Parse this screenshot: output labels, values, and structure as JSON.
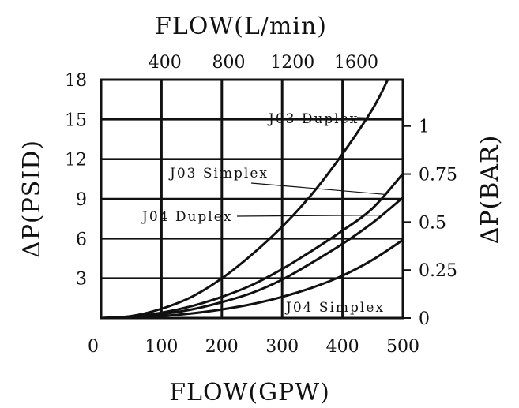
{
  "chart_data": {
    "type": "line",
    "title": "",
    "x_bottom": {
      "label": "FLOW(GPW)",
      "range": [
        0,
        500
      ],
      "ticks": [
        0,
        100,
        200,
        300,
        400,
        500
      ],
      "tick_labels": [
        "0",
        "100",
        "200",
        "300",
        "400",
        "500"
      ]
    },
    "x_top": {
      "label": "FLOW(L/min)",
      "ticks": [
        400,
        800,
        1200,
        1600
      ],
      "tick_labels": [
        "400",
        "800",
        "1200",
        "1600"
      ]
    },
    "y_left": {
      "label": "ΔP(PSID)",
      "range": [
        0,
        18
      ],
      "ticks": [
        3,
        6,
        9,
        12,
        15,
        18
      ],
      "tick_labels": [
        "3",
        "6",
        "9",
        "12",
        "15",
        "18"
      ]
    },
    "y_right": {
      "label": "ΔP(BAR)",
      "ticks": [
        0,
        0.25,
        0.5,
        0.75,
        1
      ],
      "tick_labels": [
        "0",
        "0.25",
        "0.5",
        "0.75",
        "1"
      ]
    },
    "grid": true,
    "series": [
      {
        "name": "J03 Duplex",
        "x": [
          0,
          50,
          100,
          150,
          200,
          250,
          300,
          350,
          400,
          450,
          475
        ],
        "y": [
          0,
          0.15,
          0.7,
          1.6,
          3.0,
          4.8,
          6.9,
          9.4,
          12.4,
          15.8,
          18.0
        ]
      },
      {
        "name": "J03 Simplex",
        "x": [
          0,
          50,
          100,
          150,
          200,
          250,
          300,
          350,
          400,
          450,
          500
        ],
        "y": [
          0,
          0.1,
          0.4,
          0.9,
          1.6,
          2.5,
          3.7,
          5.1,
          6.6,
          8.3,
          10.9
        ]
      },
      {
        "name": "J04 Duplex",
        "x": [
          0,
          50,
          100,
          150,
          200,
          250,
          300,
          350,
          400,
          450,
          500
        ],
        "y": [
          0,
          0.08,
          0.3,
          0.65,
          1.2,
          1.9,
          2.9,
          4.2,
          5.6,
          7.2,
          9.1
        ]
      },
      {
        "name": "J04 Simplex",
        "x": [
          0,
          50,
          100,
          150,
          200,
          250,
          300,
          350,
          400,
          450,
          500
        ],
        "y": [
          0,
          0.05,
          0.15,
          0.35,
          0.65,
          1.05,
          1.6,
          2.3,
          3.2,
          4.4,
          5.9
        ]
      }
    ],
    "annotations": [
      {
        "text": "J03 Duplex",
        "series": "J03 Duplex"
      },
      {
        "text": "J03 Simplex",
        "series": "J03 Simplex"
      },
      {
        "text": "J04 Duplex",
        "series": "J04 Duplex"
      },
      {
        "text": "J04 Simplex",
        "series": "J04 Simplex"
      }
    ]
  }
}
